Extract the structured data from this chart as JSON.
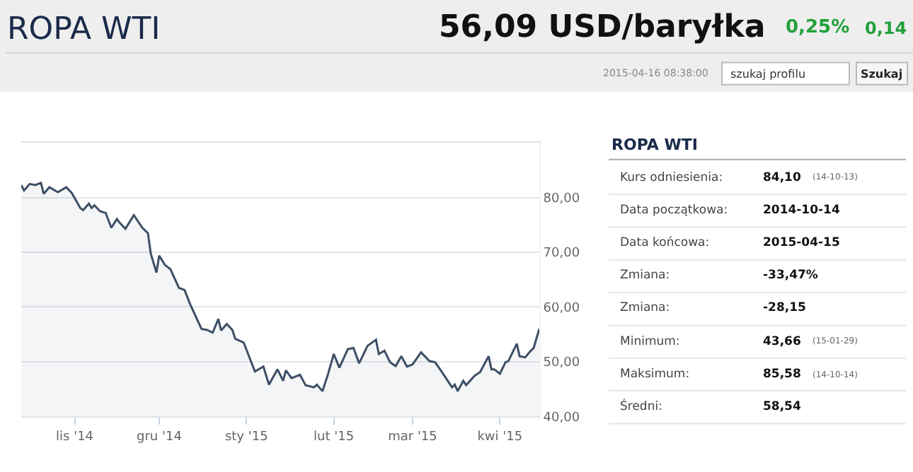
{
  "chart_data": {
    "type": "area",
    "title": "ROPA WTI",
    "x": [
      "2014-10-13",
      "2014-10-14",
      "2014-10-16",
      "2014-10-18",
      "2014-10-20",
      "2014-10-21",
      "2014-10-23",
      "2014-10-26",
      "2014-10-29",
      "2014-10-31",
      "2014-11-03",
      "2014-11-04",
      "2014-11-06",
      "2014-11-07",
      "2014-11-08",
      "2014-11-10",
      "2014-11-12",
      "2014-11-14",
      "2014-11-16",
      "2014-11-17",
      "2014-11-19",
      "2014-11-22",
      "2014-11-25",
      "2014-11-27",
      "2014-11-28",
      "2014-11-30",
      "2014-12-01",
      "2014-12-03",
      "2014-12-05",
      "2014-12-08",
      "2014-12-10",
      "2014-12-12",
      "2014-12-16",
      "2014-12-18",
      "2014-12-20",
      "2014-12-22",
      "2014-12-23",
      "2014-12-25",
      "2014-12-27",
      "2014-12-28",
      "2014-12-31",
      "2015-01-04",
      "2015-01-07",
      "2015-01-09",
      "2015-01-12",
      "2015-01-14",
      "2015-01-15",
      "2015-01-17",
      "2015-01-20",
      "2015-01-22",
      "2015-01-25",
      "2015-01-26",
      "2015-01-28",
      "2015-01-30",
      "2015-02-01",
      "2015-02-03",
      "2015-02-06",
      "2015-02-08",
      "2015-02-10",
      "2015-02-13",
      "2015-02-16",
      "2015-02-17",
      "2015-02-19",
      "2015-02-21",
      "2015-02-23",
      "2015-02-25",
      "2015-02-27",
      "2015-03-01",
      "2015-03-04",
      "2015-03-07",
      "2015-03-09",
      "2015-03-11",
      "2015-03-15",
      "2015-03-16",
      "2015-03-17",
      "2015-03-19",
      "2015-03-20",
      "2015-03-23",
      "2015-03-25",
      "2015-03-28",
      "2015-03-29",
      "2015-03-30",
      "2015-04-01",
      "2015-04-03",
      "2015-04-04",
      "2015-04-07",
      "2015-04-08",
      "2015-04-10",
      "2015-04-12",
      "2015-04-13",
      "2015-04-15"
    ],
    "series": [
      {
        "color": "#3d4f66",
        "values": [
          82.3,
          81.3,
          82.5,
          82.3,
          82.7,
          80.7,
          81.9,
          81.0,
          81.9,
          80.8,
          78.1,
          77.7,
          78.9,
          78.1,
          78.6,
          77.5,
          77.2,
          74.5,
          76.1,
          75.4,
          74.3,
          76.8,
          74.5,
          73.5,
          69.8,
          66.3,
          69.4,
          67.7,
          66.9,
          63.5,
          63.1,
          60.5,
          56.0,
          55.8,
          55.3,
          57.8,
          55.7,
          56.9,
          55.8,
          54.2,
          53.5,
          48.2,
          49.1,
          45.8,
          48.6,
          46.5,
          48.4,
          47.0,
          47.6,
          45.7,
          45.3,
          45.8,
          44.6,
          47.8,
          51.4,
          48.9,
          52.3,
          52.5,
          49.7,
          52.9,
          54.0,
          51.4,
          52.0,
          49.9,
          49.2,
          51.0,
          49.1,
          49.5,
          51.7,
          50.1,
          49.9,
          48.4,
          45.3,
          45.8,
          44.6,
          46.5,
          45.7,
          47.4,
          48.1,
          51.0,
          48.6,
          48.6,
          47.8,
          49.9,
          50.1,
          53.3,
          51.0,
          50.8,
          52.0,
          52.5,
          56.0
        ]
      }
    ],
    "xlim": [
      "2014-10-13",
      "2015-04-15"
    ],
    "xticks": [
      {
        "value": "2014-11-01",
        "label": "lis '14"
      },
      {
        "value": "2014-12-01",
        "label": "gru '14"
      },
      {
        "value": "2015-01-01",
        "label": "sty '15"
      },
      {
        "value": "2015-02-01",
        "label": "lut '15"
      },
      {
        "value": "2015-03-01",
        "label": "mar '15"
      },
      {
        "value": "2015-04-01",
        "label": "kwi '15"
      }
    ],
    "ylim": [
      40,
      90
    ],
    "yticks": [
      {
        "value": 40,
        "label": "40,00"
      },
      {
        "value": 50,
        "label": "50,00"
      },
      {
        "value": 60,
        "label": "60,00"
      },
      {
        "value": 70,
        "label": "70,00"
      },
      {
        "value": 80,
        "label": "80,00"
      }
    ],
    "grid": "y",
    "annotations": [
      "56,09 USD/baryłka",
      "0,25%",
      "0,14",
      "2015-04-16 08:38:00",
      "szukaj profilu",
      "Szukaj",
      "ROPA WTI",
      "Kurs odniesienia:",
      "84,10",
      "(14-10-13)",
      "Data początkowa:",
      "2014-10-14",
      "Data końcowa:",
      "2015-04-15",
      "Zmiana:",
      "-33,47%",
      "Zmiana:",
      "-28,15",
      "Minimum:",
      "43,66",
      "(15-01-29)",
      "Maksimum:",
      "85,58",
      "(14-10-14)",
      "Średni:",
      "58,54"
    ]
  }
}
